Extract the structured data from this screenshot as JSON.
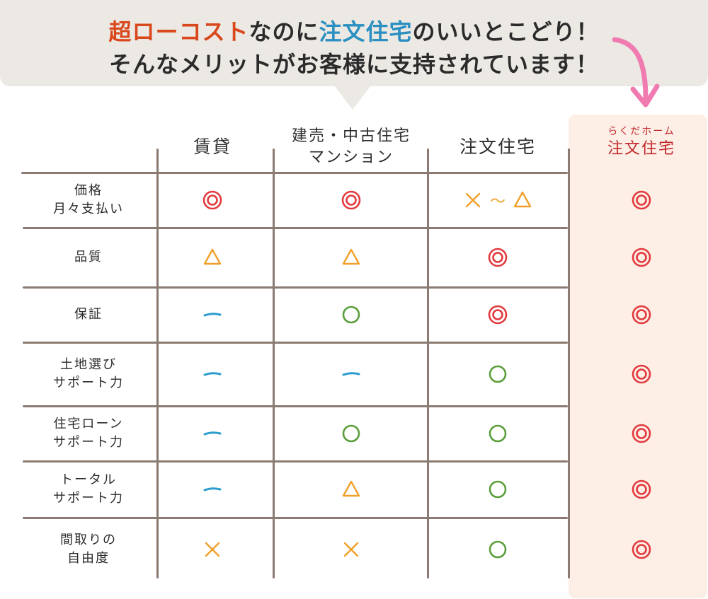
{
  "banner": {
    "line1": [
      {
        "text": "超ローコスト",
        "style": "red"
      },
      {
        "text": "なのに",
        "style": "plain"
      },
      {
        "text": "注文住宅",
        "style": "blue"
      },
      {
        "text": "のいいとこどり！",
        "style": "plain"
      }
    ],
    "line2": "そんなメリットがお客様に支持されています！"
  },
  "columns": [
    {
      "id": "rental",
      "label_lines": [
        "賃貸"
      ]
    },
    {
      "id": "ready-built",
      "label_lines": [
        "建売・中古住宅",
        "マンション"
      ]
    },
    {
      "id": "custom",
      "label_lines": [
        "注文住宅"
      ]
    },
    {
      "id": "rakuda",
      "label_small": "らくだホーム",
      "label_big": "注文住宅"
    }
  ],
  "rows": [
    {
      "label_lines": [
        "価格",
        "月々支払い"
      ],
      "marks": [
        "double-circle",
        "double-circle",
        "cross-to-triangle",
        "double-circle"
      ],
      "range_separator": "～"
    },
    {
      "label_lines": [
        "品質"
      ],
      "marks": [
        "triangle",
        "triangle",
        "double-circle",
        "double-circle"
      ]
    },
    {
      "label_lines": [
        "保証"
      ],
      "marks": [
        "dash",
        "circle",
        "double-circle",
        "double-circle"
      ]
    },
    {
      "label_lines": [
        "土地選び",
        "サポート力"
      ],
      "marks": [
        "dash",
        "dash",
        "circle",
        "double-circle"
      ]
    },
    {
      "label_lines": [
        "住宅ローン",
        "サポート力"
      ],
      "marks": [
        "dash",
        "circle",
        "circle",
        "double-circle"
      ]
    },
    {
      "label_lines": [
        "トータル",
        "サポート力"
      ],
      "marks": [
        "dash",
        "triangle",
        "circle",
        "double-circle"
      ]
    },
    {
      "label_lines": [
        "間取りの",
        "自由度"
      ],
      "marks": [
        "cross",
        "cross",
        "circle",
        "double-circle"
      ]
    }
  ],
  "colors": {
    "double_circle": "#e23a3e",
    "circle": "#5a9e3a",
    "triangle": "#f0a02a",
    "cross": "#f0a02a",
    "dash": "#2a9ccf",
    "brand": "#c2282a",
    "highlight_bg": "#fdeee6",
    "arrow": "#f07bb0"
  }
}
